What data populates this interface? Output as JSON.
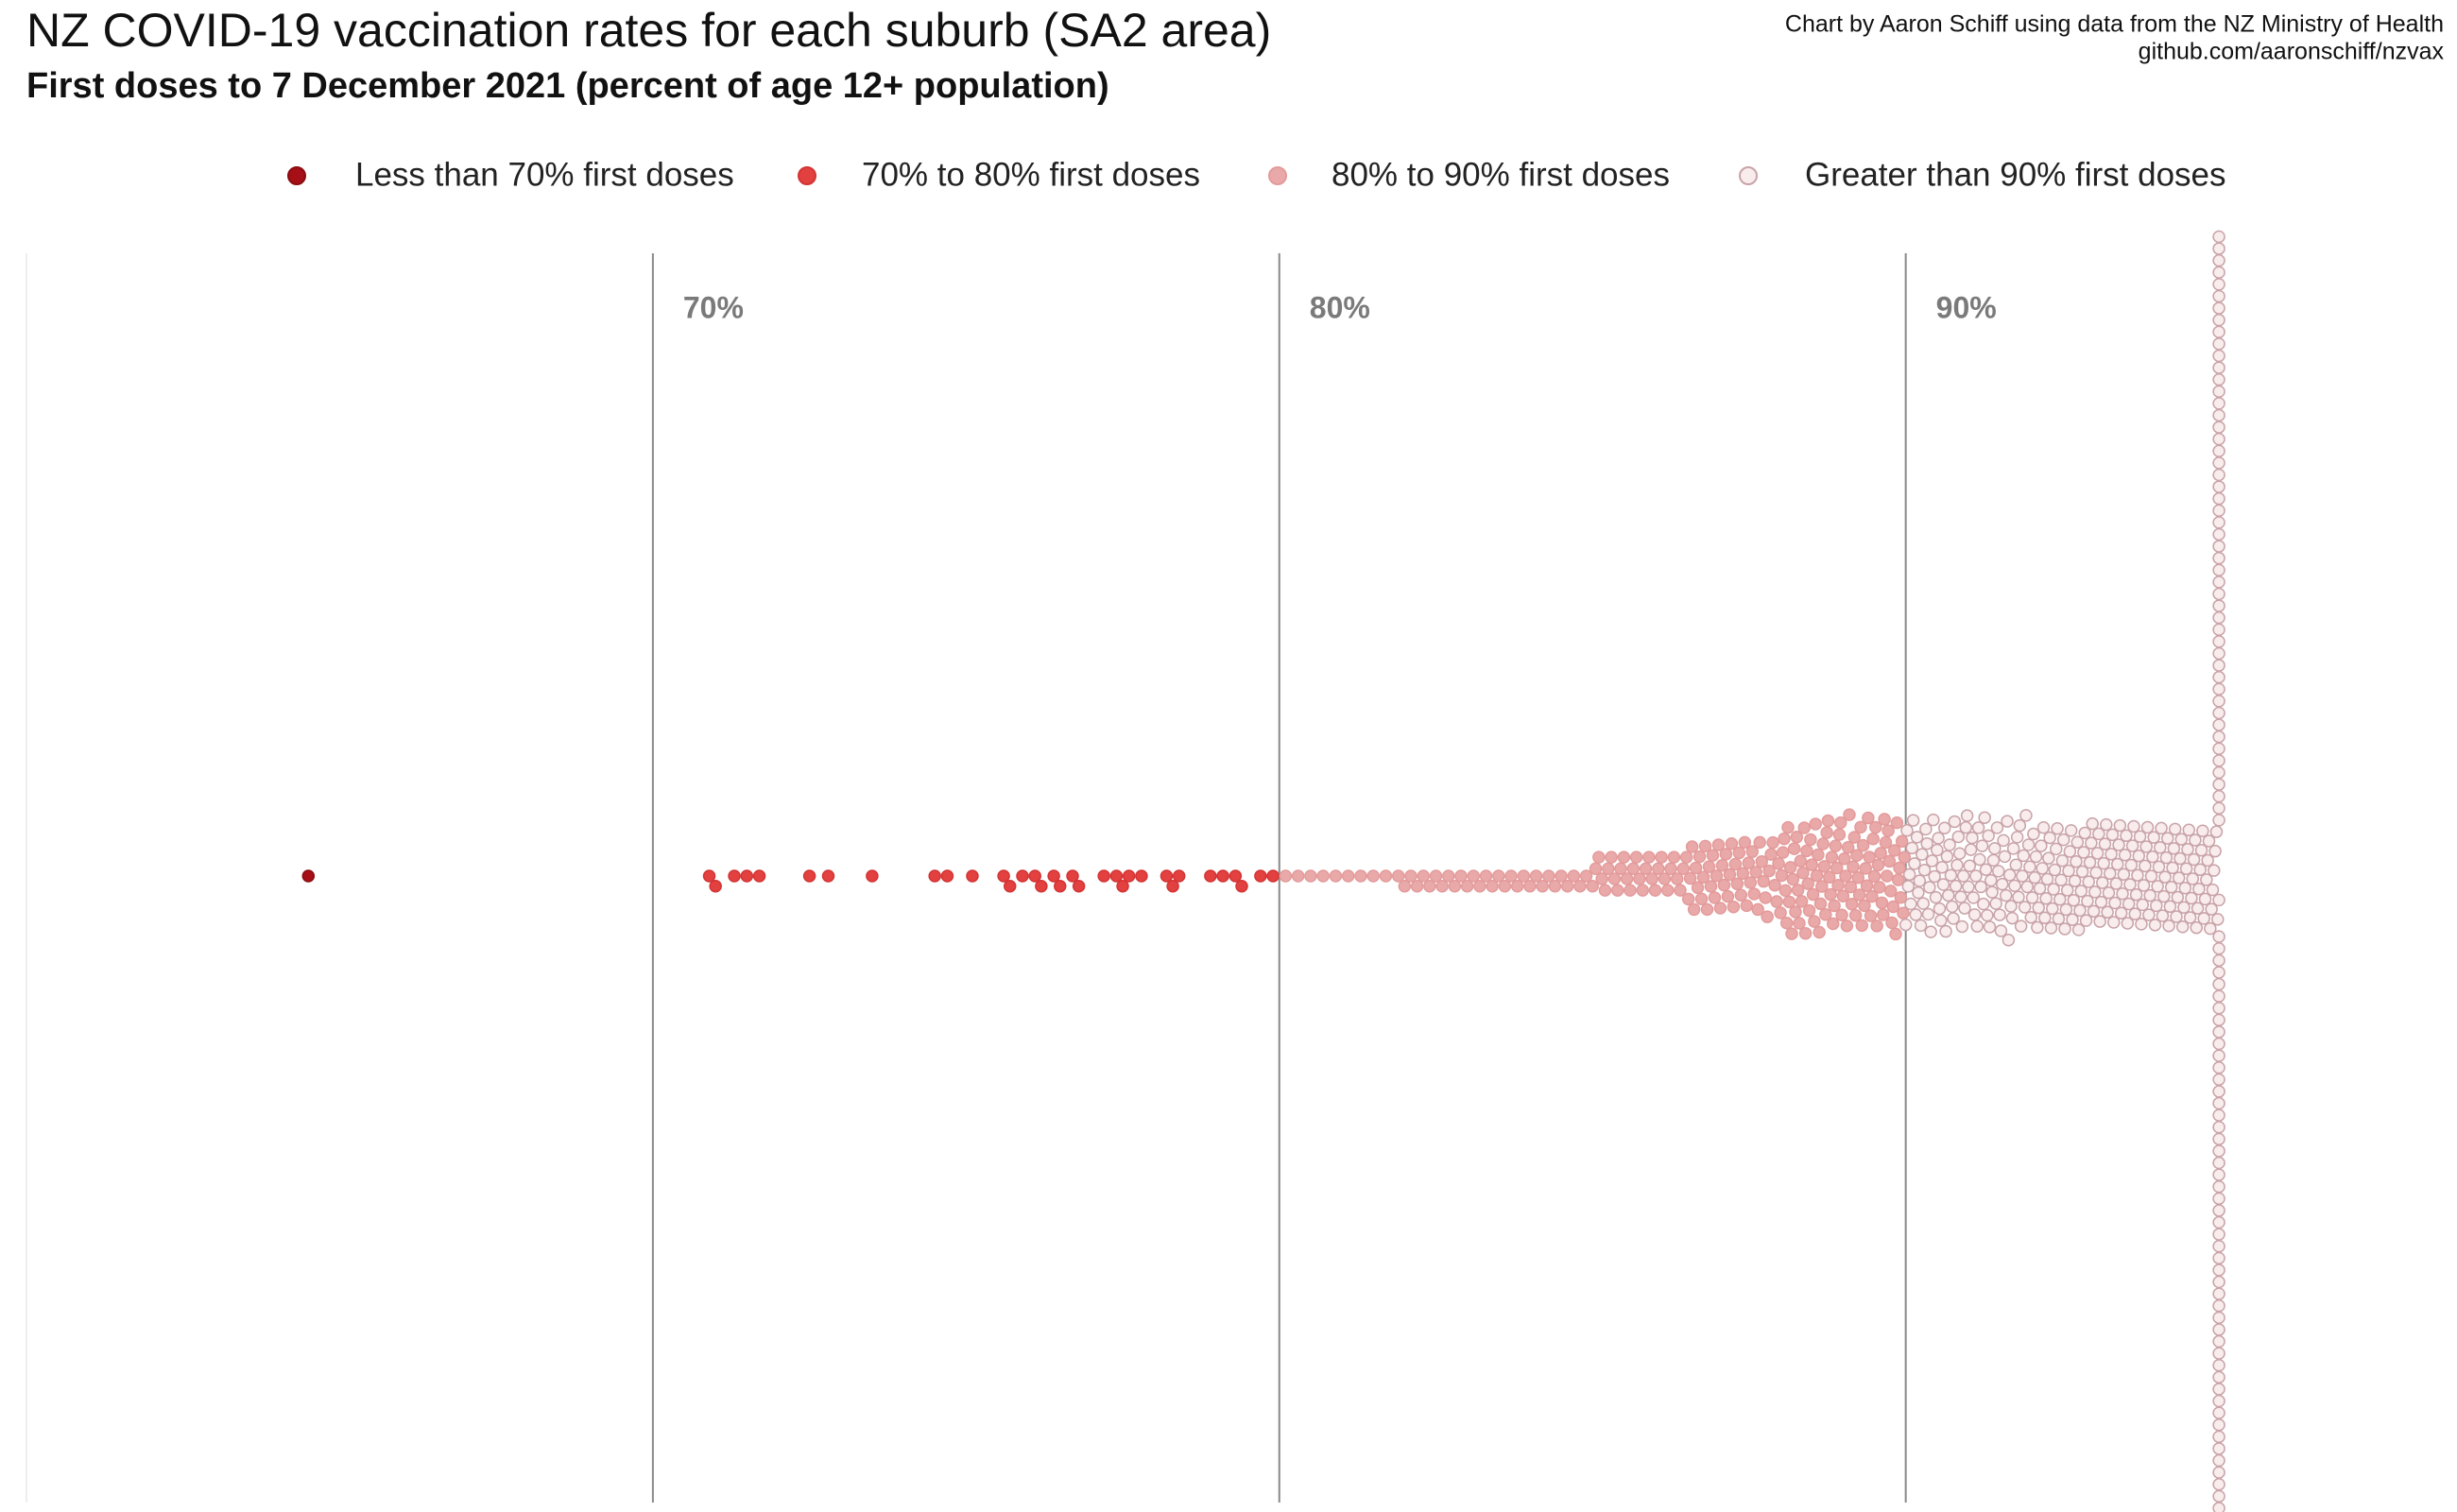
{
  "chart_data": {
    "type": "beeswarm",
    "title": "NZ COVID-19 vaccination rates for each suburb (SA2 area)",
    "subtitle": "First doses to 7 December 2021 (percent of age 12+ population)",
    "credits": [
      "Chart by Aaron Schiff using data from the NZ Ministry of Health",
      "github.com/aaronschiff/nzvax"
    ],
    "legend": "top",
    "xlim": [
      60,
      98.8
    ],
    "xticks": [
      {
        "value": 70,
        "label": "70%"
      },
      {
        "value": 80,
        "label": "80%"
      },
      {
        "value": 90,
        "label": "90%"
      }
    ],
    "grid": true,
    "series": [
      {
        "name": "Less than 70% first doses",
        "color": "#a50f15",
        "stroke": "#8a0c12",
        "values": [
          64.5
        ]
      },
      {
        "name": "70% to 80% first doses",
        "color": "#e34040",
        "stroke": "#d43434",
        "values": [
          70.9,
          71.0,
          71.3,
          71.5,
          71.7,
          72.5,
          72.8,
          73.5,
          74.5,
          74.7,
          75.1,
          75.6,
          75.7,
          75.9,
          76.1,
          76.2,
          76.4,
          76.5,
          76.7,
          76.8,
          77.2,
          77.4,
          77.5,
          77.6,
          77.8,
          78.2,
          78.3,
          78.4,
          78.9,
          79.1,
          79.3,
          79.4,
          79.7,
          79.9
        ]
      },
      {
        "name": "80% to 90% first doses",
        "color": "#eaa9a9",
        "stroke": "#e39b9b",
        "values": [
          80.1,
          80.3,
          80.5,
          80.7,
          80.9,
          81.1,
          81.3,
          81.5,
          81.7,
          81.9,
          82.0,
          82.1,
          82.2,
          82.3,
          82.4,
          82.5,
          82.6,
          82.7,
          82.8,
          82.9,
          83.0,
          83.1,
          83.2,
          83.3,
          83.4,
          83.5,
          83.6,
          83.7,
          83.8,
          83.9,
          84.0,
          84.1,
          84.2,
          84.3,
          84.4,
          84.5,
          84.6,
          84.7,
          84.8,
          84.9,
          85.0,
          85.05,
          85.1,
          85.15,
          85.2,
          85.25,
          85.3,
          85.35,
          85.4,
          85.45,
          85.5,
          85.55,
          85.6,
          85.65,
          85.7,
          85.75,
          85.8,
          85.85,
          85.9,
          85.95,
          86.0,
          86.05,
          86.1,
          86.15,
          86.2,
          86.25,
          86.3,
          86.35,
          86.4,
          86.45,
          86.5,
          86.53,
          86.56,
          86.59,
          86.62,
          86.65,
          86.68,
          86.71,
          86.74,
          86.77,
          86.8,
          86.83,
          86.86,
          86.89,
          86.92,
          86.95,
          86.98,
          87.01,
          87.04,
          87.07,
          87.1,
          87.13,
          87.16,
          87.19,
          87.22,
          87.25,
          87.28,
          87.31,
          87.34,
          87.37,
          87.4,
          87.43,
          87.46,
          87.49,
          87.52,
          87.55,
          87.58,
          87.61,
          87.64,
          87.67,
          87.7,
          87.73,
          87.76,
          87.79,
          87.82,
          87.85,
          87.88,
          87.91,
          87.94,
          87.97,
          88.0,
          88.02,
          88.04,
          88.06,
          88.08,
          88.1,
          88.12,
          88.14,
          88.16,
          88.18,
          88.2,
          88.22,
          88.24,
          88.26,
          88.28,
          88.3,
          88.32,
          88.34,
          88.36,
          88.38,
          88.4,
          88.42,
          88.44,
          88.46,
          88.48,
          88.5,
          88.52,
          88.54,
          88.56,
          88.58,
          88.6,
          88.62,
          88.64,
          88.66,
          88.68,
          88.7,
          88.72,
          88.74,
          88.76,
          88.78,
          88.8,
          88.82,
          88.84,
          88.86,
          88.88,
          88.9,
          88.92,
          88.94,
          88.96,
          88.98,
          89.0,
          89.02,
          89.04,
          89.06,
          89.08,
          89.1,
          89.12,
          89.14,
          89.16,
          89.18,
          89.2,
          89.22,
          89.24,
          89.26,
          89.28,
          89.3,
          89.32,
          89.34,
          89.36,
          89.38,
          89.4,
          89.42,
          89.44,
          89.46,
          89.48,
          89.5,
          89.52,
          89.54,
          89.56,
          89.58,
          89.6,
          89.62,
          89.64,
          89.66,
          89.68,
          89.7,
          89.72,
          89.74,
          89.76,
          89.78,
          89.8,
          89.82,
          89.84,
          89.86,
          89.88,
          89.9,
          89.92,
          89.94,
          89.96,
          89.98
        ]
      },
      {
        "name": "Greater than 90% first doses",
        "color": "#f8ecec",
        "stroke": "#c9a3a8",
        "values": [
          90.0,
          90.02,
          90.04,
          90.06,
          90.08,
          90.1,
          90.12,
          90.14,
          90.16,
          90.18,
          90.2,
          90.22,
          90.24,
          90.26,
          90.28,
          90.3,
          90.32,
          90.34,
          90.36,
          90.38,
          90.4,
          90.42,
          90.44,
          90.46,
          90.48,
          90.5,
          90.52,
          90.54,
          90.56,
          90.58,
          90.6,
          90.62,
          90.64,
          90.66,
          90.68,
          90.7,
          90.72,
          90.74,
          90.76,
          90.78,
          90.8,
          90.82,
          90.84,
          90.86,
          90.88,
          90.9,
          90.92,
          90.94,
          90.96,
          90.98,
          91.0,
          91.02,
          91.04,
          91.06,
          91.08,
          91.1,
          91.12,
          91.14,
          91.16,
          91.18,
          91.2,
          91.22,
          91.24,
          91.26,
          91.28,
          91.3,
          91.32,
          91.34,
          91.36,
          91.38,
          91.4,
          91.42,
          91.44,
          91.46,
          91.48,
          91.5,
          91.52,
          91.54,
          91.56,
          91.58,
          91.6,
          91.62,
          91.64,
          91.66,
          91.68,
          91.7,
          91.72,
          91.74,
          91.76,
          91.78,
          91.8,
          91.82,
          91.84,
          91.86,
          91.88,
          91.9,
          91.92,
          91.94,
          91.96,
          91.98,
          92.0,
          92.02,
          92.04,
          92.06,
          92.08,
          92.1,
          92.12,
          92.14,
          92.16,
          92.18,
          92.2,
          92.22,
          92.24,
          92.26,
          92.28,
          92.3,
          92.32,
          92.34,
          92.36,
          92.38,
          92.4,
          92.42,
          92.44,
          92.46,
          92.48,
          92.5,
          92.52,
          92.54,
          92.56,
          92.58,
          92.6,
          92.62,
          92.64,
          92.66,
          92.68,
          92.7,
          92.72,
          92.74,
          92.76,
          92.78,
          92.8,
          92.82,
          92.84,
          92.86,
          92.88,
          92.9,
          92.92,
          92.94,
          92.96,
          92.98,
          93.0,
          93.02,
          93.04,
          93.06,
          93.08,
          93.1,
          93.12,
          93.14,
          93.16,
          93.18,
          93.2,
          93.22,
          93.24,
          93.26,
          93.28,
          93.3,
          93.32,
          93.34,
          93.36,
          93.38,
          93.4,
          93.42,
          93.44,
          93.46,
          93.48,
          93.5,
          93.52,
          93.54,
          93.56,
          93.58,
          93.6,
          93.62,
          93.64,
          93.66,
          93.68,
          93.7,
          93.72,
          93.74,
          93.76,
          93.78,
          93.8,
          93.82,
          93.84,
          93.86,
          93.88,
          93.9,
          93.92,
          93.94,
          93.96,
          93.98,
          94.0,
          94.02,
          94.04,
          94.06,
          94.08,
          94.1,
          94.12,
          94.14,
          94.16,
          94.18,
          94.2,
          94.22,
          94.24,
          94.26,
          94.28,
          94.3,
          94.32,
          94.34,
          94.36,
          94.38,
          94.4,
          94.42,
          94.44,
          94.46,
          94.48,
          94.5,
          94.52,
          94.54,
          94.56,
          94.58,
          94.6,
          94.62,
          94.64,
          94.66,
          94.68,
          94.7,
          94.72,
          94.74,
          94.76,
          94.78,
          94.8,
          94.82,
          94.84,
          94.86,
          94.88,
          94.9,
          94.92,
          94.94,
          94.96,
          94.98,
          95,
          95,
          95,
          95,
          95,
          95,
          95,
          95,
          95,
          95,
          95,
          95,
          95,
          95,
          95,
          95,
          95,
          95,
          95,
          95,
          95,
          95,
          95,
          95,
          95,
          95,
          95,
          95,
          95,
          95,
          95,
          95,
          95,
          95,
          95,
          95,
          95,
          95,
          95,
          95,
          95,
          95,
          95,
          95,
          95,
          95,
          95,
          95,
          95,
          95,
          95,
          95,
          95,
          95,
          95,
          95,
          95,
          95,
          95,
          95,
          95,
          95,
          95,
          95,
          95,
          95,
          95,
          95,
          95,
          95,
          95,
          95,
          95,
          95,
          95,
          95,
          95,
          95,
          95,
          95,
          95,
          95,
          95,
          95,
          95,
          95,
          95,
          95,
          95,
          95,
          95,
          95,
          95,
          95,
          95,
          95,
          95,
          95,
          95,
          95
        ]
      }
    ]
  }
}
